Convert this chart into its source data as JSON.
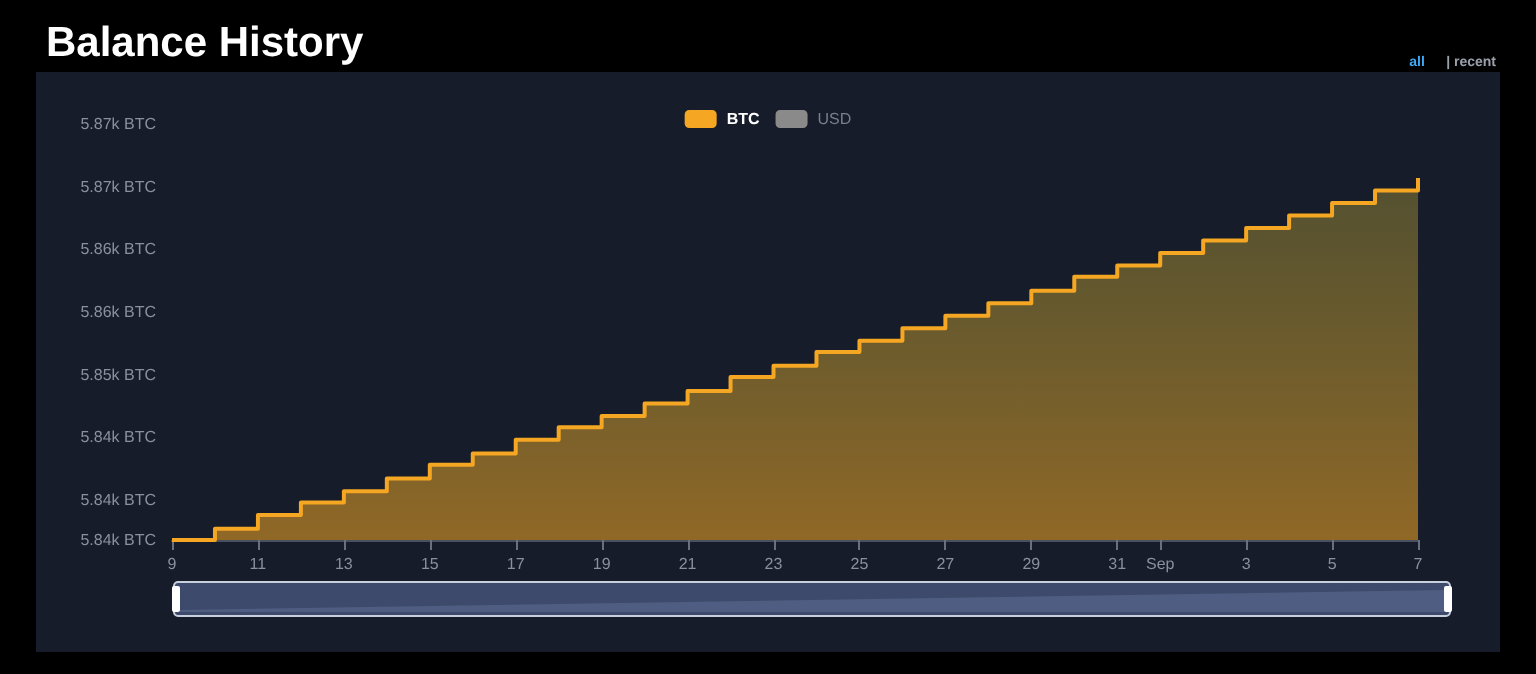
{
  "chart_data": {
    "type": "area",
    "title": "Balance History",
    "annotations": [
      "all",
      "| recent"
    ],
    "x": [
      "--08-09",
      "--08-10",
      "--08-11",
      "--08-12",
      "--08-13",
      "--08-14",
      "--08-15",
      "--08-16",
      "--08-17",
      "--08-18",
      "--08-19",
      "--08-20",
      "--08-21",
      "--08-22",
      "--08-23",
      "--08-24",
      "--08-25",
      "--08-26",
      "--08-27",
      "--08-28",
      "--08-29",
      "--08-30",
      "--08-31",
      "--09-01",
      "--09-02",
      "--09-03",
      "--09-04",
      "--09-05",
      "--09-06",
      "--09-07"
    ],
    "series": [
      {
        "name": "BTC",
        "color": "#f5a623",
        "values": [
          5836.8,
          5837.7,
          5838.8,
          5839.8,
          5840.7,
          5841.7,
          5842.8,
          5843.7,
          5844.8,
          5845.8,
          5846.7,
          5847.7,
          5848.7,
          5849.8,
          5850.7,
          5851.8,
          5852.7,
          5853.7,
          5854.7,
          5855.7,
          5856.7,
          5857.8,
          5858.7,
          5859.7,
          5860.7,
          5861.7,
          5862.7,
          5863.7,
          5864.7,
          5865.7
        ]
      },
      {
        "name": "USD",
        "color": "#8a8a8a",
        "values": [
          null,
          null,
          null,
          null,
          null,
          null,
          null,
          null,
          null,
          null,
          null,
          null,
          null,
          null,
          null,
          null,
          null,
          null,
          null,
          null,
          null,
          null,
          null,
          null,
          null,
          null,
          null,
          null,
          null,
          null
        ]
      }
    ],
    "xlim": [
      "--08-09",
      "--09-07"
    ],
    "xticks": [
      {
        "value": "--08-09",
        "label": "9"
      },
      {
        "value": "--08-11",
        "label": "11"
      },
      {
        "value": "--08-13",
        "label": "13"
      },
      {
        "value": "--08-15",
        "label": "15"
      },
      {
        "value": "--08-17",
        "label": "17"
      },
      {
        "value": "--08-19",
        "label": "19"
      },
      {
        "value": "--08-21",
        "label": "21"
      },
      {
        "value": "--08-23",
        "label": "23"
      },
      {
        "value": "--08-25",
        "label": "25"
      },
      {
        "value": "--08-27",
        "label": "27"
      },
      {
        "value": "--08-29",
        "label": "29"
      },
      {
        "value": "--08-31",
        "label": "31"
      },
      {
        "value": "--09-01",
        "label": "Sep"
      },
      {
        "value": "--09-03",
        "label": "3"
      },
      {
        "value": "--09-05",
        "label": "5"
      },
      {
        "value": "--09-07",
        "label": "7"
      }
    ],
    "ylim": [
      5836.8,
      5870
    ],
    "yticks": [
      {
        "value": 5836.8,
        "label": "5.84k BTC"
      },
      {
        "value": 5840,
        "label": "5.84k BTC"
      },
      {
        "value": 5845,
        "label": "5.84k BTC"
      },
      {
        "value": 5850,
        "label": "5.85k BTC"
      },
      {
        "value": 5855,
        "label": "5.86k BTC"
      },
      {
        "value": 5860,
        "label": "5.86k BTC"
      },
      {
        "value": 5865,
        "label": "5.87k BTC"
      },
      {
        "value": 5870,
        "label": "5.87k BTC"
      }
    ],
    "grid": false,
    "legend": "top",
    "marker": "none"
  }
}
